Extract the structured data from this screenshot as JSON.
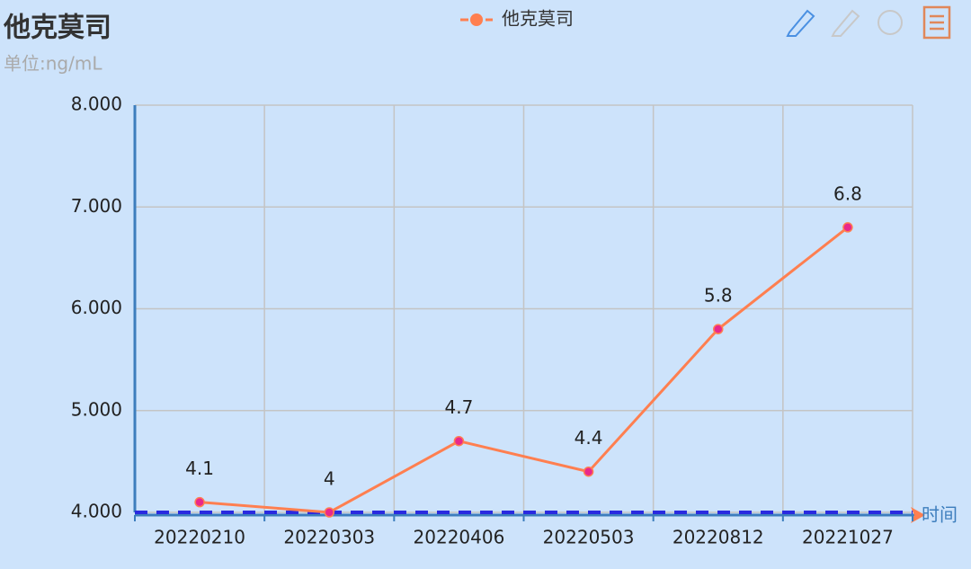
{
  "chart_data": {
    "type": "line",
    "title": "他克莫司",
    "subtitle": "单位:ng/mL",
    "x_axis_name": "时间",
    "categories": [
      "20220210",
      "20220303",
      "20220406",
      "20220503",
      "20220812",
      "20221027"
    ],
    "series": [
      {
        "name": "他克莫司",
        "color": "#ff7f50",
        "point_color": "#e8288c",
        "values": [
          4.1,
          4,
          4.7,
          4.4,
          5.8,
          6.8
        ]
      }
    ],
    "ylim": [
      4,
      8
    ],
    "yticks": [
      {
        "value": 4,
        "label": "4.000"
      },
      {
        "value": 5,
        "label": "5.000"
      },
      {
        "value": 6,
        "label": "6.000"
      },
      {
        "value": 7,
        "label": "7.000"
      },
      {
        "value": 8,
        "label": "8.000"
      }
    ],
    "grid": true,
    "mark_line": {
      "value": 4,
      "color": "#2a2ae0"
    }
  }
}
